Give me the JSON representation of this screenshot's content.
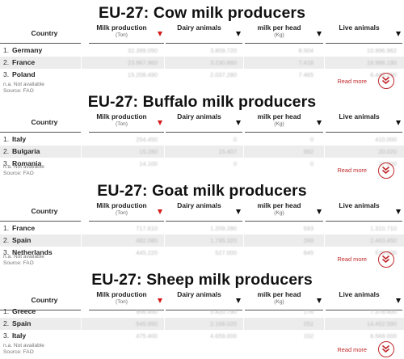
{
  "columns": {
    "country": "Country",
    "milk_production": "Milk production",
    "milk_production_unit": "(Ton)",
    "dairy_animals": "Dairy animals",
    "milk_per_head": "milk per head",
    "milk_per_head_unit": "(Kg)",
    "live_animals": "Live animals"
  },
  "note_na": "n.a. Not available",
  "note_source": "Source: FAO",
  "read_more": "Read more",
  "sections": [
    {
      "title": "EU-27: Cow milk producers",
      "rows": [
        {
          "rank": "1.",
          "country": "Germany",
          "milk": "32.399.050",
          "dairy": "3.809.720",
          "per_head": "8.504",
          "live": "10.996.962"
        },
        {
          "rank": "2.",
          "country": "France",
          "milk": "23.967.960",
          "dairy": "3.230.860",
          "per_head": "7.418",
          "live": "16.986.190"
        },
        {
          "rank": "3.",
          "country": "Poland",
          "milk": "15.208.490",
          "dairy": "2.037.280",
          "per_head": "7.465",
          "live": "6.448.290"
        }
      ]
    },
    {
      "title": "EU-27: Buffalo milk producers",
      "rows": [
        {
          "rank": "1.",
          "country": "Italy",
          "milk": "254.450",
          "dairy": "0",
          "per_head": "0",
          "live": "410.000"
        },
        {
          "rank": "2.",
          "country": "Bulgaria",
          "milk": "15.280",
          "dairy": "15.407",
          "per_head": "992",
          "live": "20.020"
        },
        {
          "rank": "3.",
          "country": "Romania",
          "milk": "14.100",
          "dairy": "0",
          "per_head": "0",
          "live": "17.900"
        }
      ]
    },
    {
      "title": "EU-27: Goat milk producers",
      "rows": [
        {
          "rank": "1.",
          "country": "France",
          "milk": "717.610",
          "dairy": "1.209.280",
          "per_head": "593",
          "live": "1.310.710"
        },
        {
          "rank": "2.",
          "country": "Spain",
          "milk": "482.080",
          "dairy": "1.795.320",
          "per_head": "269",
          "live": "2.463.450"
        },
        {
          "rank": "3.",
          "country": "Netherlands",
          "milk": "445.220",
          "dairy": "527.000",
          "per_head": "845",
          "live": "570.000"
        }
      ]
    },
    {
      "title": "EU-27: Sheep milk producers",
      "rows": [
        {
          "rank": "1.",
          "country": "Greece",
          "milk": "956.450",
          "dairy": "5.420.790",
          "per_head": "176",
          "live": "7.378.400"
        },
        {
          "rank": "2.",
          "country": "Spain",
          "milk": "545.950",
          "dairy": "2.168.020",
          "per_head": "252",
          "live": "14.452.590"
        },
        {
          "rank": "3.",
          "country": "Italy",
          "milk": "475.400",
          "dairy": "4.659.000",
          "per_head": "102",
          "live": "6.568.000"
        }
      ]
    }
  ]
}
